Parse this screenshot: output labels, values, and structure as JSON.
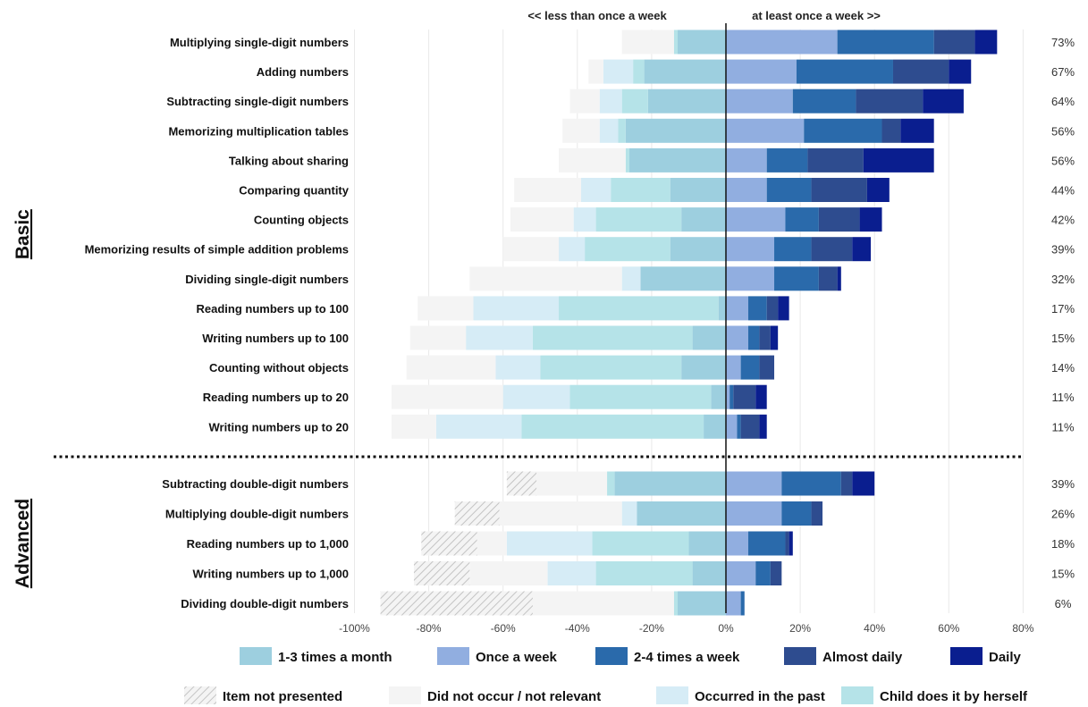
{
  "chart_data": {
    "type": "bar",
    "orientation": "horizontal",
    "stacked": "diverging",
    "direction_labels": {
      "negative": "<< less than once a week",
      "positive": "at least once a week  >>"
    },
    "groups": [
      {
        "name": "Basic",
        "start": 0,
        "end": 13
      },
      {
        "name": "Advanced",
        "start": 14,
        "end": 18
      }
    ],
    "categories": [
      "Multiplying single-digit numbers",
      "Adding numbers",
      "Subtracting single-digit numbers",
      "Memorizing multiplication tables",
      "Talking about sharing",
      "Comparing quantity",
      "Counting objects",
      "Memorizing results of simple addition problems",
      "Dividing single-digit numbers",
      "Reading numbers up to 100",
      "Writing numbers up to 100",
      "Counting without objects",
      "Reading numbers up to 20",
      "Writing numbers up to 20",
      "Subtracting double-digit numbers",
      "Multiplying double-digit numbers",
      "Reading numbers up to 1,000",
      "Writing numbers up to 1,000",
      "Dividing double-digit numbers"
    ],
    "percent_labels": [
      "73%",
      "67%",
      "64%",
      "56%",
      "56%",
      "44%",
      "42%",
      "39%",
      "32%",
      "17%",
      "15%",
      "14%",
      "11%",
      "11%",
      "39%",
      "26%",
      "18%",
      "15%",
      "6%"
    ],
    "negative_series": [
      {
        "name": "1-3 times a month",
        "color": "#9dcfdf",
        "values": [
          13,
          22,
          21,
          27,
          26,
          15,
          12,
          15,
          23,
          2,
          9,
          12,
          4,
          6,
          30,
          24,
          10,
          9,
          13
        ]
      },
      {
        "name": "Child does it by herself",
        "color": "#b5e3e8",
        "values": [
          1,
          3,
          7,
          2,
          1,
          16,
          23,
          23,
          0,
          43,
          43,
          38,
          38,
          49,
          2,
          0,
          26,
          26,
          1
        ]
      },
      {
        "name": "Occurred in the past",
        "color": "#d6ecf6",
        "values": [
          0,
          8,
          6,
          5,
          0,
          8,
          6,
          7,
          5,
          23,
          18,
          12,
          18,
          23,
          0,
          4,
          23,
          13,
          0
        ]
      },
      {
        "name": "Did not occur / not relevant",
        "color": "#f4f4f4",
        "values": [
          14,
          4,
          8,
          10,
          18,
          18,
          17,
          15,
          41,
          15,
          15,
          24,
          30,
          12,
          19,
          33,
          8,
          21,
          38
        ]
      },
      {
        "name": "Item not presented",
        "color": "#dddddd",
        "pattern": "hatch",
        "values": [
          0,
          0,
          0,
          0,
          0,
          0,
          0,
          0,
          0,
          0,
          0,
          0,
          0,
          0,
          8,
          12,
          15,
          15,
          41
        ]
      }
    ],
    "positive_series": [
      {
        "name": "Once a week",
        "color": "#91aee0",
        "values": [
          30,
          19,
          18,
          21,
          11,
          11,
          16,
          13,
          13,
          6,
          6,
          4,
          1,
          3,
          15,
          15,
          6,
          8,
          4
        ]
      },
      {
        "name": "2-4 times a week",
        "color": "#2a6aab",
        "values": [
          26,
          26,
          17,
          21,
          11,
          12,
          9,
          10,
          12,
          5,
          3,
          5,
          1,
          1,
          16,
          8,
          10,
          4,
          1
        ]
      },
      {
        "name": "Almost daily",
        "color": "#2e4c8f",
        "values": [
          11,
          15,
          18,
          5,
          15,
          15,
          11,
          11,
          5,
          3,
          3,
          4,
          6,
          5,
          3,
          3,
          1,
          3,
          0
        ]
      },
      {
        "name": "Daily",
        "color": "#0a1e8f",
        "values": [
          6,
          6,
          11,
          9,
          19,
          6,
          6,
          5,
          1,
          3,
          2,
          0,
          3,
          2,
          6,
          0,
          1,
          0,
          0
        ]
      }
    ],
    "xlim": [
      -100,
      80
    ],
    "xticks": [
      -100,
      -80,
      -60,
      -40,
      -20,
      0,
      20,
      40,
      60,
      80
    ],
    "xtick_labels": [
      "-100%",
      "-80%",
      "-60%",
      "-40%",
      "-20%",
      "0%",
      "20%",
      "40%",
      "60%",
      "80%"
    ],
    "xlabel": "",
    "ylabel": "",
    "title": "",
    "grid": "vertical",
    "legend": {
      "placement": "bottom",
      "rows": [
        [
          "1-3 times a month",
          "Once a week",
          "2-4 times a week",
          "Almost daily",
          "Daily"
        ],
        [
          "Item not presented",
          "Did not occur / not relevant",
          "Occurred in the past",
          "Child does it by herself"
        ]
      ]
    }
  }
}
